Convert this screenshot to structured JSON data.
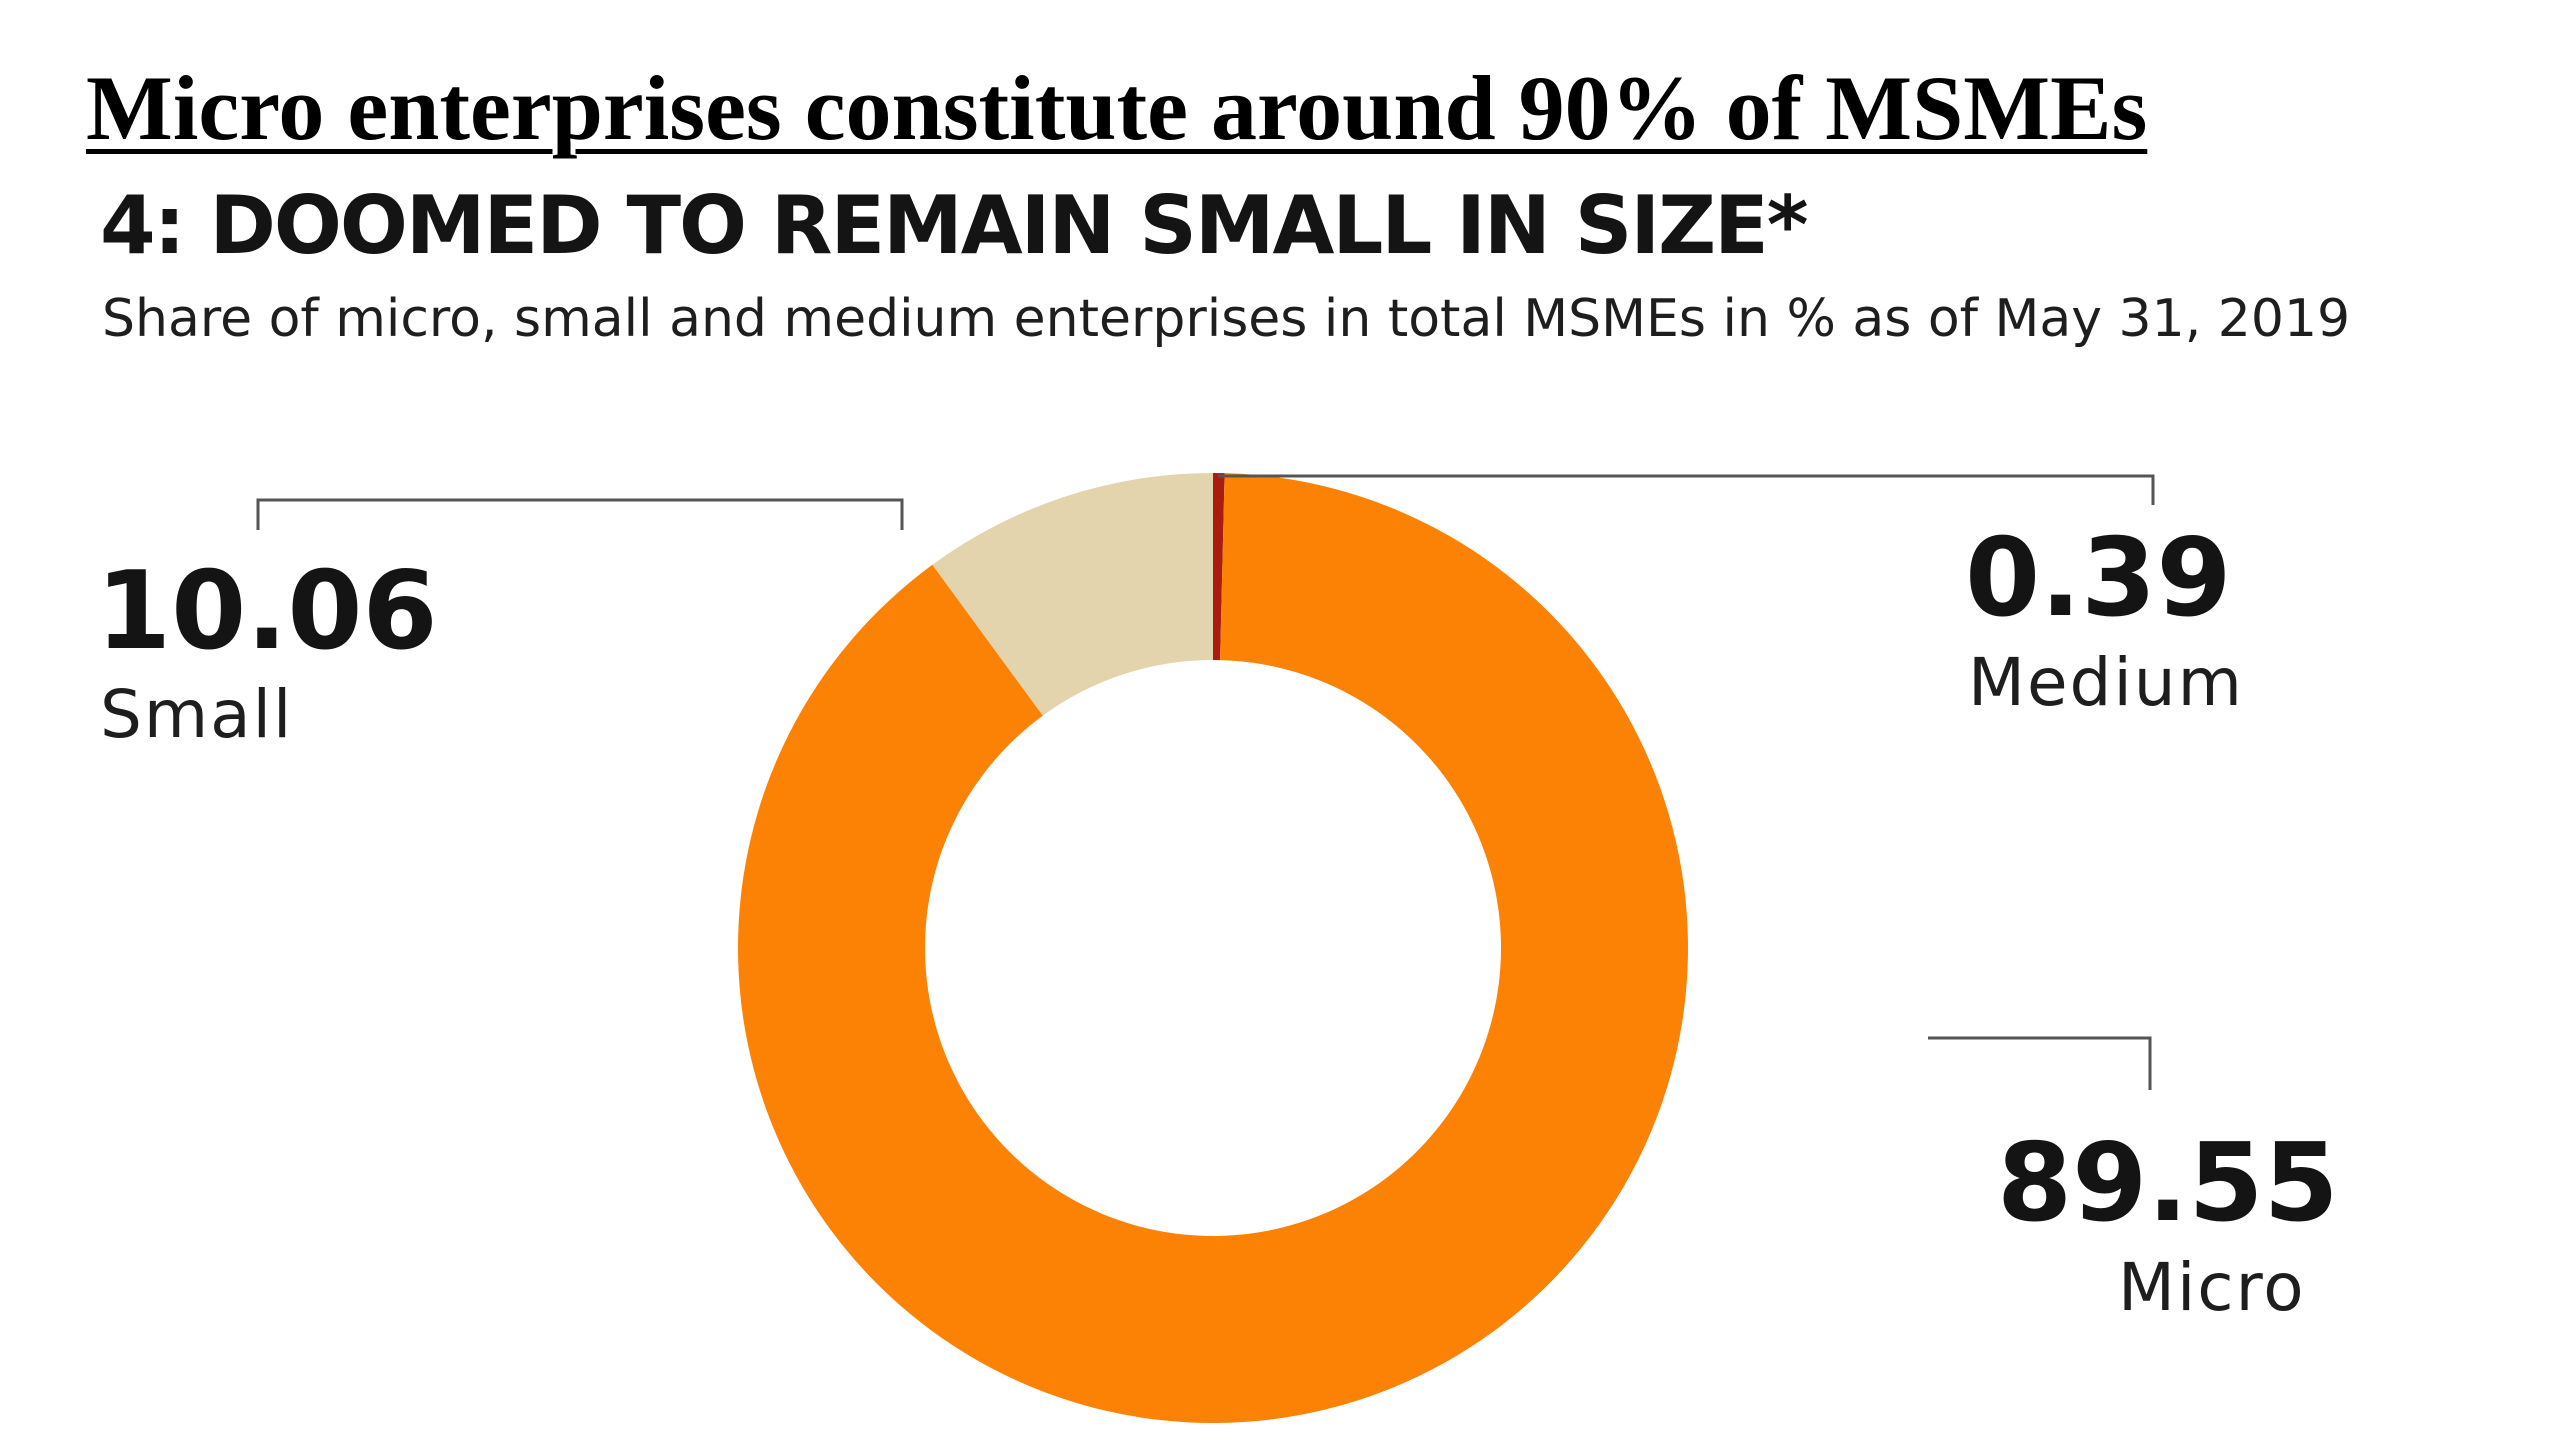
{
  "slide": {
    "title": "Micro enterprises constitute around 90% of MSMEs"
  },
  "chart_data": {
    "type": "pie",
    "title": "4: DOOMED TO REMAIN SMALL IN SIZE*",
    "subtitle": "Share of micro, small and medium enterprises in total MSMEs in % as of May 31, 2019",
    "donut": true,
    "slices": [
      {
        "label": "Medium",
        "value": 0.39,
        "value_text": "0.39",
        "color": "#a81d10"
      },
      {
        "label": "Micro",
        "value": 89.55,
        "value_text": "89.55",
        "color": "#fb8205"
      },
      {
        "label": "Small",
        "value": 10.06,
        "value_text": "10.06",
        "color": "#e3d4ae"
      }
    ]
  }
}
